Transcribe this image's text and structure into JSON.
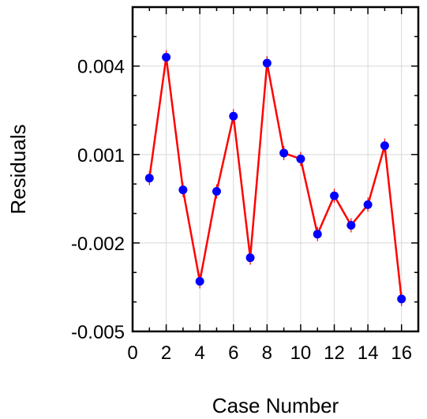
{
  "chart_data": {
    "type": "line",
    "title": "",
    "xlabel": "Case Number",
    "ylabel": "Residuals",
    "xlim": [
      0,
      17
    ],
    "ylim": [
      -0.005,
      0.006
    ],
    "grid": true,
    "x_ticks": [
      "0",
      "2",
      "4",
      "6",
      "8",
      "10",
      "12",
      "14",
      "16"
    ],
    "y_ticks": [
      "-0.005",
      "-0.002",
      "0.001",
      "0.004"
    ],
    "series": [
      {
        "x": [
          1,
          2,
          3,
          4,
          5,
          6,
          7,
          8,
          9,
          10,
          11,
          12,
          13,
          14,
          15,
          16
        ],
        "y": [
          0.0002,
          0.0043,
          -0.0002,
          -0.0033,
          -0.00025,
          0.0023,
          -0.0025,
          0.0041,
          0.00105,
          0.00085,
          -0.0017,
          -0.0004,
          -0.0014,
          -0.0007,
          0.0013,
          -0.0039
        ],
        "line_color": "#ff0000",
        "marker_color": "#0000ff"
      }
    ]
  }
}
